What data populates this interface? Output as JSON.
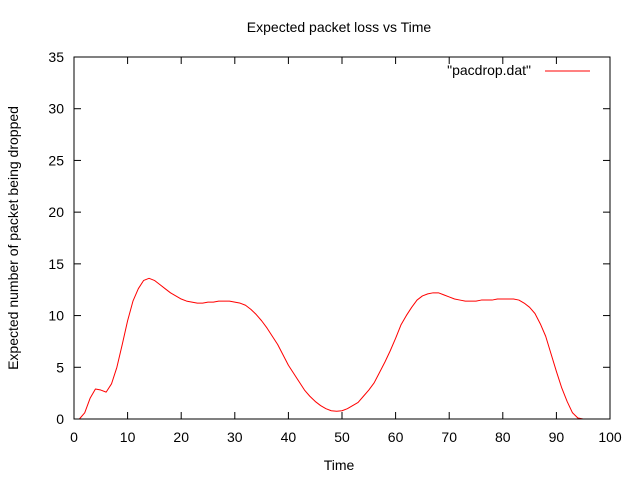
{
  "chart_data": {
    "type": "line",
    "title": "Expected packet loss vs Time",
    "xlabel": "Time",
    "ylabel": "Expected number of packet being dropped",
    "xlim": [
      0,
      100
    ],
    "ylim": [
      0,
      35
    ],
    "xticks": [
      0,
      10,
      20,
      30,
      40,
      50,
      60,
      70,
      80,
      90,
      100
    ],
    "yticks": [
      0,
      5,
      10,
      15,
      20,
      25,
      30,
      35
    ],
    "grid": false,
    "legend_position": "top-right",
    "series": [
      {
        "name": "\"pacdrop.dat\"",
        "color": "#ff0000",
        "x": [
          1,
          2,
          3,
          4,
          5,
          6,
          7,
          8,
          9,
          10,
          11,
          12,
          13,
          14,
          15,
          16,
          17,
          18,
          19,
          20,
          21,
          22,
          23,
          24,
          25,
          26,
          27,
          28,
          29,
          30,
          31,
          32,
          33,
          34,
          35,
          36,
          37,
          38,
          39,
          40,
          41,
          42,
          43,
          44,
          45,
          46,
          47,
          48,
          49,
          50,
          51,
          52,
          53,
          54,
          55,
          56,
          57,
          58,
          59,
          60,
          61,
          62,
          63,
          64,
          65,
          66,
          67,
          68,
          69,
          70,
          71,
          72,
          73,
          74,
          75,
          76,
          77,
          78,
          79,
          80,
          81,
          82,
          83,
          84,
          85,
          86,
          87,
          88,
          89,
          90,
          91,
          92,
          93,
          94,
          95,
          96
        ],
        "y": [
          0.0,
          0.6,
          2.0,
          2.9,
          2.8,
          2.6,
          3.4,
          5.0,
          7.2,
          9.5,
          11.4,
          12.6,
          13.4,
          13.6,
          13.4,
          13.0,
          12.6,
          12.2,
          11.9,
          11.6,
          11.4,
          11.3,
          11.2,
          11.2,
          11.3,
          11.3,
          11.4,
          11.4,
          11.4,
          11.3,
          11.2,
          11.0,
          10.6,
          10.1,
          9.5,
          8.8,
          8.0,
          7.2,
          6.2,
          5.2,
          4.4,
          3.6,
          2.8,
          2.2,
          1.7,
          1.3,
          1.0,
          0.8,
          0.75,
          0.8,
          1.0,
          1.3,
          1.6,
          2.2,
          2.8,
          3.5,
          4.5,
          5.5,
          6.6,
          7.8,
          9.1,
          10.0,
          10.8,
          11.5,
          11.9,
          12.1,
          12.2,
          12.2,
          12.0,
          11.8,
          11.6,
          11.5,
          11.4,
          11.4,
          11.4,
          11.5,
          11.5,
          11.5,
          11.6,
          11.6,
          11.6,
          11.6,
          11.5,
          11.2,
          10.8,
          10.2,
          9.2,
          8.0,
          6.3,
          4.6,
          3.0,
          1.7,
          0.6,
          0.1,
          0.0,
          0.0
        ]
      }
    ]
  }
}
